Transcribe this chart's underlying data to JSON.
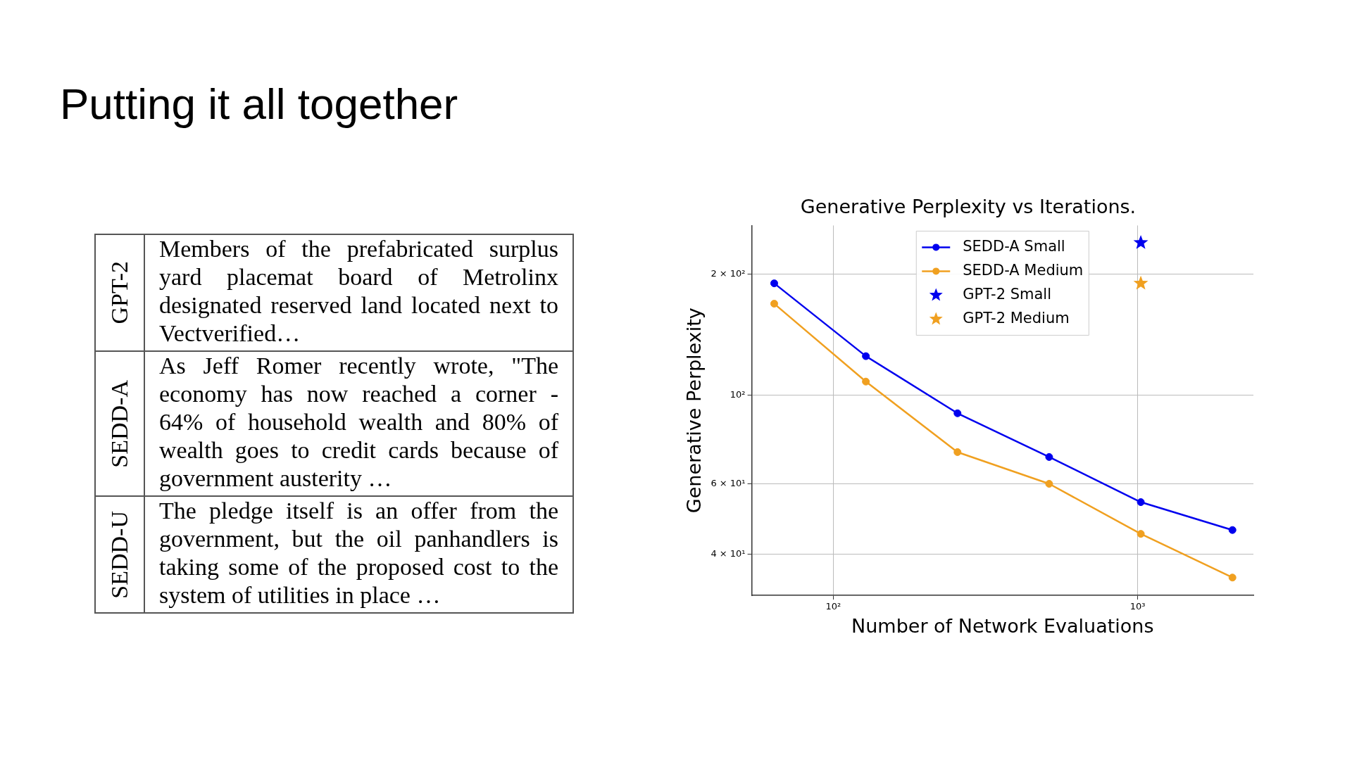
{
  "chart_data": [
    {
      "type": "other",
      "title": "Putting it all together",
      "annotations": [
        "GPT-2",
        "Members of the prefabricated surplus yard placemat board of Metrolinx designated reserved land located next to Vectverified…",
        "SEDD-A",
        "As Jeff Romer recently wrote, \"The economy has now reached a corner - 64% of household wealth and 80% of wealth goes to credit cards because of government austerity …",
        "SEDD-U",
        "The pledge itself is an offer from the government, but the oil panhandlers is taking some of the proposed cost to the system of utilities in place …"
      ]
    },
    {
      "type": "line",
      "title": "Generative Perplexity vs Iterations.",
      "xlabel": "Number of Network Evaluations",
      "ylabel": "Generative Perplexity",
      "log": "xy",
      "grid": true,
      "legend": "top",
      "xlim": [
        54,
        2400
      ],
      "ylim": [
        31.6,
        265
      ],
      "xticks": [
        {
          "value": 100,
          "label": "10²"
        },
        {
          "value": 1000,
          "label": "10³"
        }
      ],
      "yticks": [
        {
          "value": 40,
          "label": "4 × 10¹"
        },
        {
          "value": 60,
          "label": "6 × 10¹"
        },
        {
          "value": 100,
          "label": "10²"
        },
        {
          "value": 200,
          "label": "2 × 10²"
        }
      ],
      "series": [
        {
          "name": "SEDD-A Small",
          "type": "line",
          "marker": "circle",
          "color": "#0000ee",
          "x": [
            64,
            128,
            256,
            512,
            1024,
            2048
          ],
          "values": [
            190,
            125,
            90,
            70,
            54,
            46
          ]
        },
        {
          "name": "SEDD-A Medium",
          "type": "line",
          "marker": "circle",
          "color": "#f0a020",
          "x": [
            64,
            128,
            256,
            512,
            1024,
            2048
          ],
          "values": [
            169,
            108,
            72,
            60,
            45,
            35
          ]
        },
        {
          "name": "GPT-2 Small",
          "type": "scatter",
          "marker": "star",
          "color": "#0000ee",
          "x": [
            1024
          ],
          "values": [
            240
          ]
        },
        {
          "name": "GPT-2 Medium",
          "type": "scatter",
          "marker": "star",
          "color": "#f0a020",
          "x": [
            1024
          ],
          "values": [
            190
          ]
        }
      ]
    }
  ]
}
